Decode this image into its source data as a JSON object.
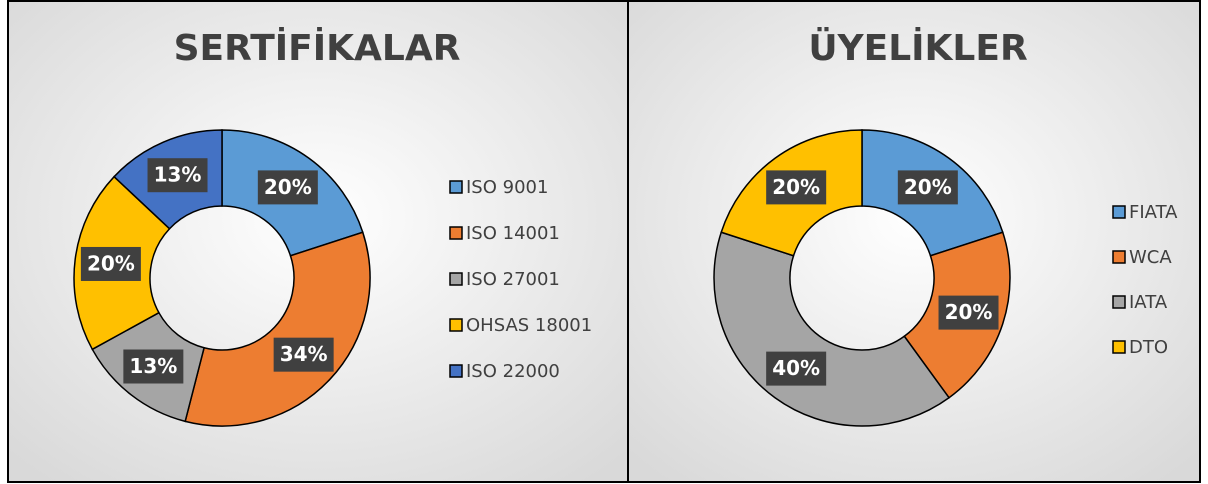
{
  "chart_data": [
    {
      "type": "pie",
      "title": "SERTİFİKALAR",
      "categories": [
        "ISO 9001",
        "ISO 14001",
        "ISO 27001",
        "OHSAS 18001",
        "ISO 22000"
      ],
      "values": [
        20,
        34,
        13,
        20,
        13
      ],
      "value_labels": [
        "20%",
        "34%",
        "13%",
        "20%",
        "13%"
      ],
      "colors": [
        "#5b9bd5",
        "#ed7d31",
        "#a5a5a5",
        "#ffc000",
        "#4472c4"
      ],
      "legend": "right"
    },
    {
      "type": "pie",
      "title": "ÜYELİKLER",
      "categories": [
        "FIATA",
        "WCA",
        "IATA",
        "DTO"
      ],
      "values": [
        20,
        20,
        40,
        20
      ],
      "value_labels": [
        "20%",
        "20%",
        "40%",
        "20%"
      ],
      "colors": [
        "#5b9bd5",
        "#ed7d31",
        "#a5a5a5",
        "#ffc000"
      ],
      "legend": "right"
    }
  ]
}
